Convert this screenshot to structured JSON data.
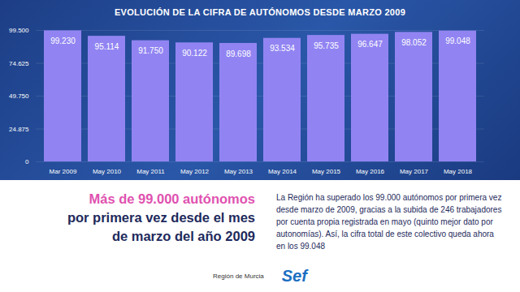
{
  "chart_data": {
    "type": "bar",
    "title": "EVOLUCIÓN DE LA CIFRA DE AUTÓNOMOS DESDE MARZO 2009",
    "categories": [
      "Mar 2009",
      "May 2010",
      "May 2011",
      "May 2012",
      "May 2013",
      "May 2014",
      "May 2015",
      "May 2016",
      "May 2017",
      "May 2018"
    ],
    "values": [
      99230,
      95114,
      91750,
      90122,
      89698,
      93534,
      95735,
      96647,
      98052,
      99048
    ],
    "value_labels": [
      "99.230",
      "95.114",
      "91.750",
      "90.122",
      "89.698",
      "93.534",
      "95.735",
      "96.647",
      "98.052",
      "99.048"
    ],
    "color": "#9184f2",
    "ylim": [
      0,
      99500
    ],
    "yticks": [
      0,
      {
        "value": 24875,
        "label": "24.875"
      },
      {
        "value": 49750,
        "label": "49.750"
      },
      {
        "value": 74625,
        "label": "74.625"
      },
      {
        "value": 99500,
        "label": "99.500"
      }
    ],
    "grid": true,
    "data_labels": true,
    "annotations": [
      {
        "lines": [
          "Más de 99.000 autónomos",
          "por primera vez desde el mes",
          "de marzo del año 2009"
        ]
      },
      {
        "text": "La Región ha superado los 99.000 autónomos por primera vez desde marzo de 2009, gracias a la subida de 246 trabajadores por cuenta propia registrada en mayo (quinto mejor dato por autonomías). Así, la cifra total de este colectivo queda ahora en los 99.048"
      },
      {
        "text": "Región de Murcia"
      },
      {
        "text": "Sef"
      }
    ]
  }
}
